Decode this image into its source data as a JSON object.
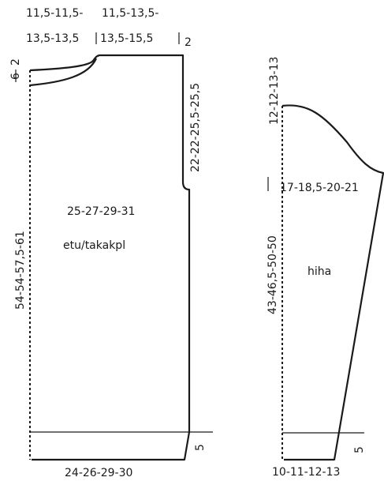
{
  "front_back_piece": {
    "name": "etu/takakpl",
    "top_left_measure_line1": "11,5-11,5-",
    "top_left_measure_line2": "13,5-13,5",
    "top_right_measure_line1": "11,5-13,5-",
    "top_right_measure_line2": "13,5-15,5",
    "shoulder_slope": "2",
    "neck_drop": "6",
    "neck_top": "2",
    "armhole_depth": "22-22-25,5-25,5",
    "width_upper": "25-27-29-31",
    "side_length": "54-54-57,5-61",
    "bottom_width": "24-26-29-30",
    "rib_height": "5"
  },
  "sleeve_piece": {
    "name": "hiha",
    "cap_height": "12-12-13-13",
    "upper_width": "17-18,5-20-21",
    "sleeve_length": "43-46,5-50-50",
    "cuff_width": "10-11-12-13",
    "rib_height": "5"
  }
}
